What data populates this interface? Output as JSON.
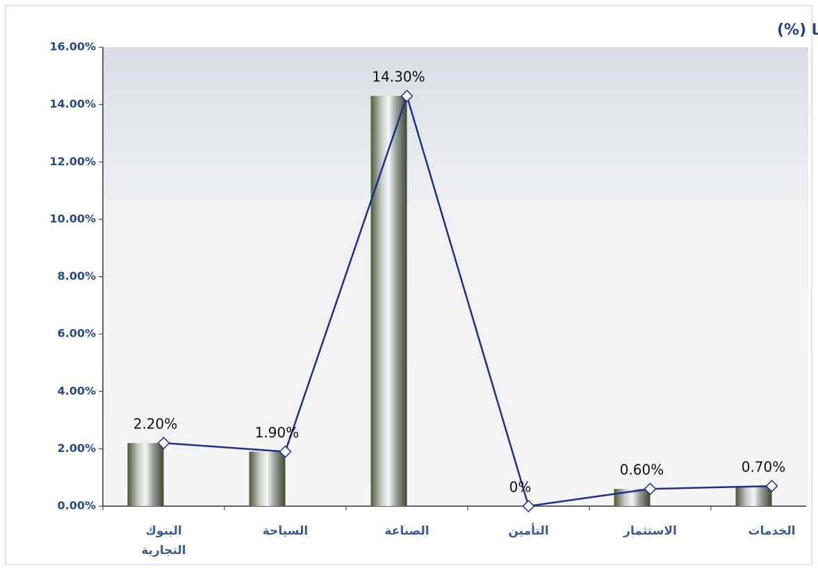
{
  "chart_data": {
    "type": "combo",
    "title": "حركة المؤشرات القطاعية خلال الأسبوع الماضي ارتفاعا وانكماشا (%)",
    "categories": [
      "البنوك\nالتجارية",
      "السياحة",
      "الصناعة",
      "التأمين",
      "الاستثمار",
      "الخدمات"
    ],
    "values": [
      2.2,
      1.9,
      14.3,
      0,
      0.6,
      0.7
    ],
    "value_labels": [
      "2.20%",
      "1.90%",
      "14.30%",
      "0%",
      "0.60%",
      "0.70%"
    ],
    "color": "#1f2f8a",
    "ylim": [
      0,
      16
    ],
    "yticks": [
      {
        "value": 0,
        "label": "0.00%"
      },
      {
        "value": 2,
        "label": "2.00%"
      },
      {
        "value": 4,
        "label": "4.00%"
      },
      {
        "value": 6,
        "label": "6.00%"
      },
      {
        "value": 8,
        "label": "8.00%"
      },
      {
        "value": 10,
        "label": "10.00%"
      },
      {
        "value": 12,
        "label": "12.00%"
      },
      {
        "value": 14,
        "label": "14.00%"
      },
      {
        "value": 16,
        "label": "16.00%"
      }
    ]
  }
}
